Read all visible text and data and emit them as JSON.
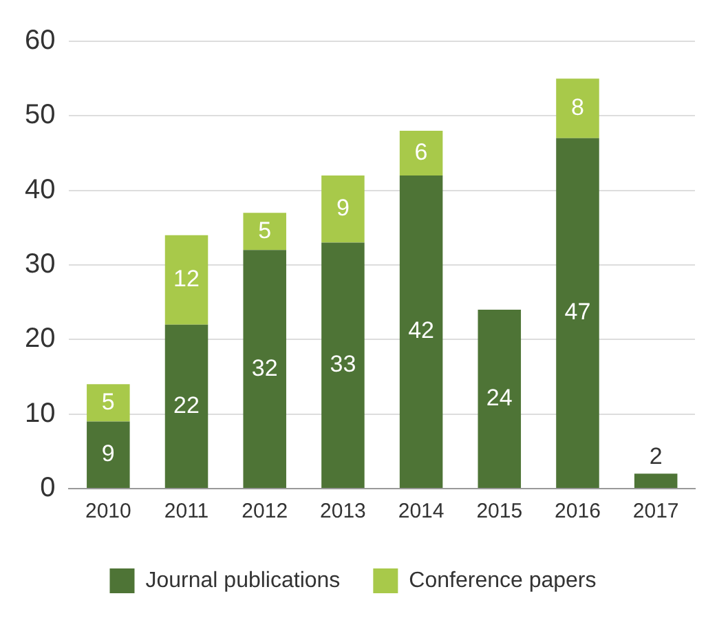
{
  "chart_data": {
    "type": "bar",
    "stacked": true,
    "categories": [
      "2010",
      "2011",
      "2012",
      "2013",
      "2014",
      "2015",
      "2016",
      "2017"
    ],
    "series": [
      {
        "name": "Journal publications",
        "color": "#4e7436",
        "values": [
          9,
          22,
          32,
          33,
          42,
          24,
          47,
          2
        ]
      },
      {
        "name": "Conference papers",
        "color": "#a8c94a",
        "values": [
          5,
          12,
          5,
          9,
          6,
          null,
          8,
          null
        ]
      }
    ],
    "ylim": [
      0,
      60
    ],
    "yticks": [
      0,
      10,
      20,
      30,
      40,
      50,
      60
    ],
    "grid": "y",
    "legend": "bottom",
    "data_labels": true
  }
}
